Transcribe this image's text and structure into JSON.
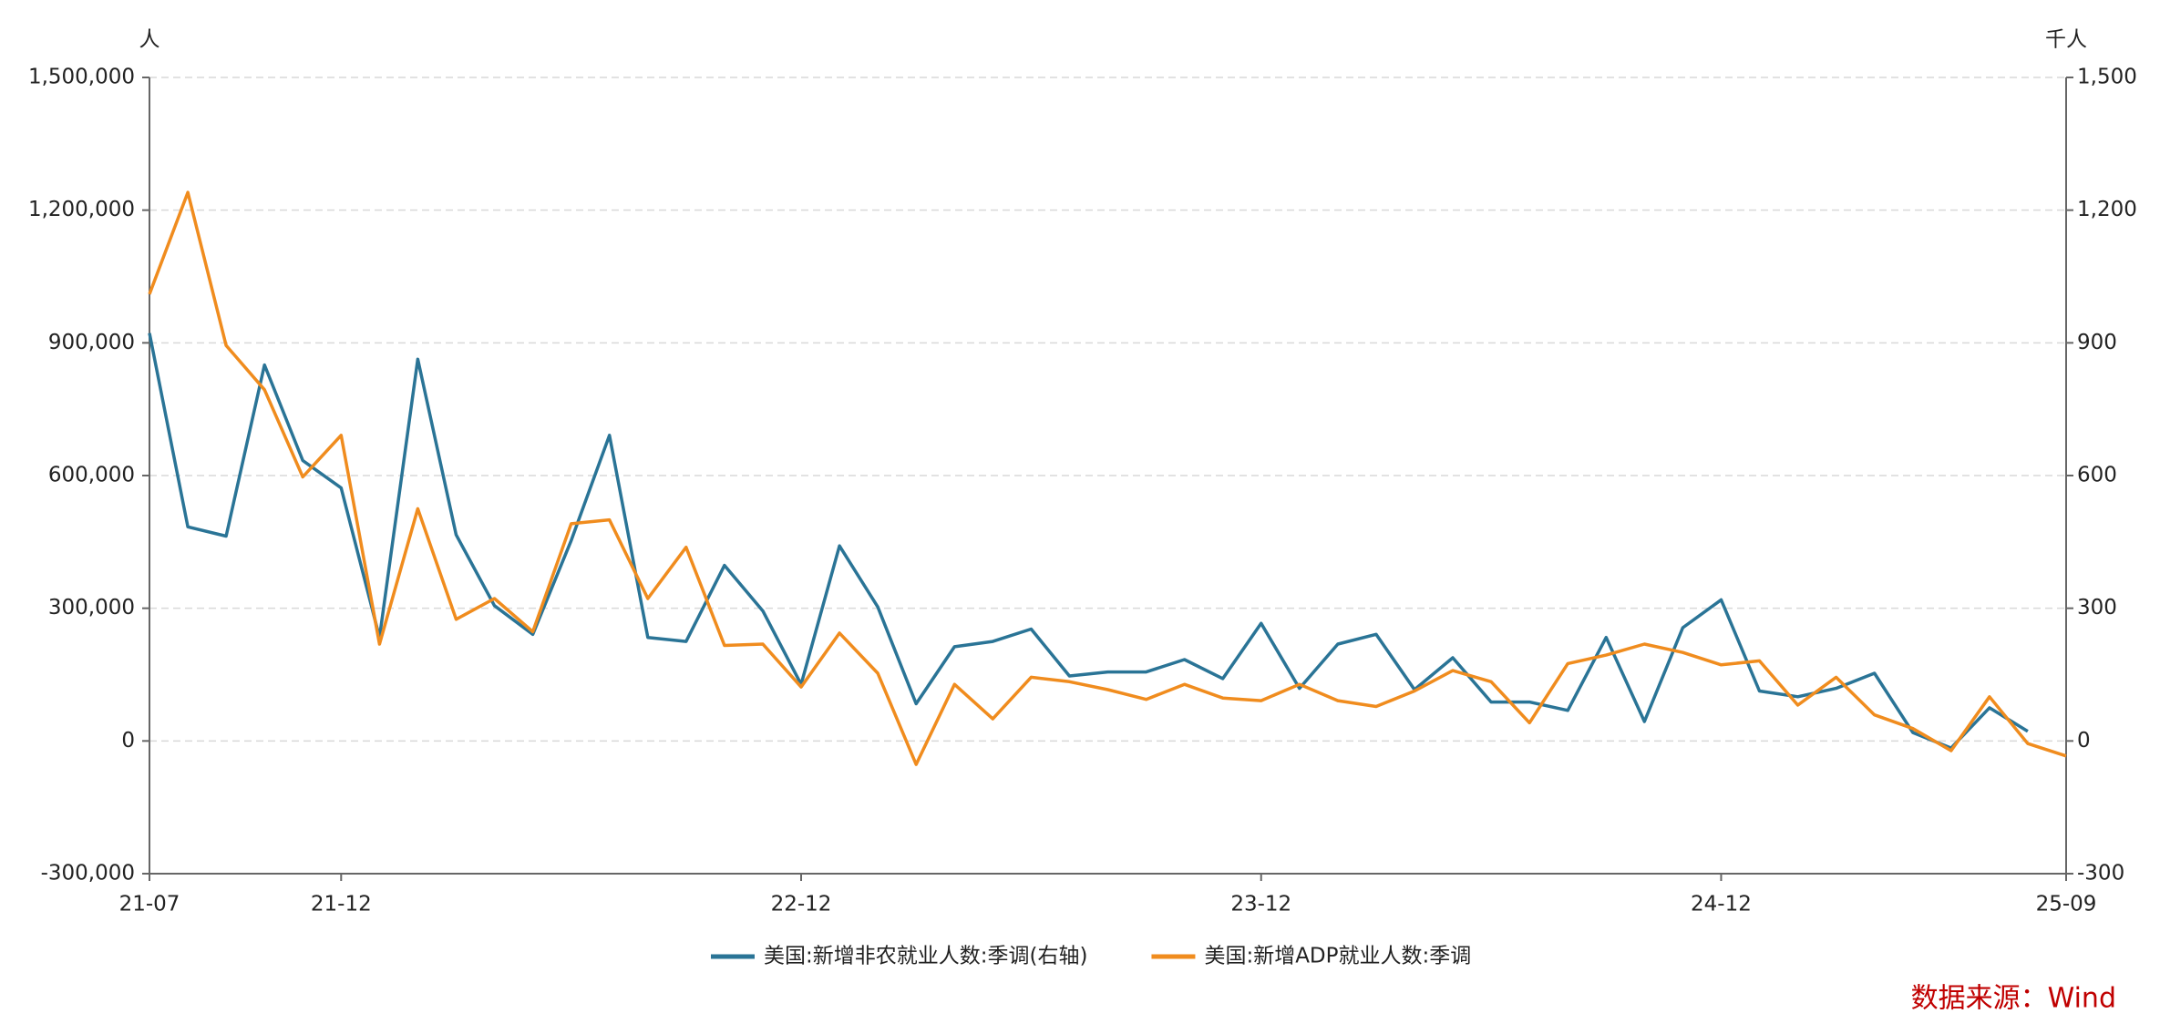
{
  "chart_data": {
    "type": "line",
    "y_unit": "人",
    "y2_unit": "千人",
    "source": "数据来源：Wind",
    "categories": [
      "21-07",
      null,
      null,
      null,
      null,
      "21-12",
      null,
      null,
      null,
      null,
      null,
      null,
      null,
      null,
      null,
      null,
      null,
      "22-12",
      null,
      null,
      null,
      null,
      null,
      null,
      null,
      null,
      null,
      null,
      null,
      "23-12",
      null,
      null,
      null,
      null,
      null,
      null,
      null,
      null,
      null,
      null,
      null,
      "24-12",
      null,
      null,
      null,
      null,
      null,
      null,
      null,
      null,
      "25-09"
    ],
    "series": [
      {
        "name": "美国:新增非农就业人数:季调(右轴)",
        "color": "#2a7496",
        "axis": "y2",
        "values": [
          922,
          484,
          463,
          850,
          634,
          572,
          234,
          863,
          466,
          306,
          241,
          453,
          691,
          234,
          225,
          397,
          294,
          128,
          441,
          303,
          84,
          213,
          225,
          253,
          147,
          156,
          156,
          184,
          141,
          266,
          119,
          219,
          241,
          116,
          188,
          88,
          88,
          69,
          234,
          44,
          256,
          319,
          113,
          100,
          119,
          153,
          19,
          -16,
          75,
          22,
          null
        ]
      },
      {
        "name": "美国:新增ADP就业人数:季调",
        "color": "#f08c1e",
        "values": [
          1010000,
          1240000,
          894000,
          794000,
          597000,
          691000,
          219000,
          525000,
          275000,
          322000,
          247000,
          491000,
          500000,
          322000,
          438000,
          216000,
          219000,
          122000,
          244000,
          153000,
          -53000,
          128000,
          50000,
          144000,
          134000,
          116000,
          94000,
          128000,
          97000,
          91000,
          128000,
          91000,
          78000,
          113000,
          159000,
          134000,
          41000,
          175000,
          194000,
          219000,
          200000,
          172000,
          181000,
          81000,
          144000,
          59000,
          28000,
          -22000,
          100000,
          -6000,
          -34000
        ]
      }
    ],
    "ylim": [
      -300000,
      1500000
    ],
    "yticks": [
      {
        "value": -300000,
        "label": "-300,000"
      },
      0,
      {
        "value": 300000,
        "label": "300,000"
      },
      {
        "value": 600000,
        "label": "600,000"
      },
      {
        "value": 900000,
        "label": "900,000"
      },
      {
        "value": 1200000,
        "label": "1,200,000"
      },
      {
        "value": 1500000,
        "label": "1,500,000"
      }
    ],
    "y2lim": [
      -300,
      1500
    ],
    "y2ticks": [
      -300,
      0,
      300,
      600,
      900,
      {
        "value": 1200,
        "label": "1,200"
      },
      {
        "value": 1500,
        "label": "1,500"
      }
    ],
    "grid": true,
    "legend": "bottom"
  }
}
